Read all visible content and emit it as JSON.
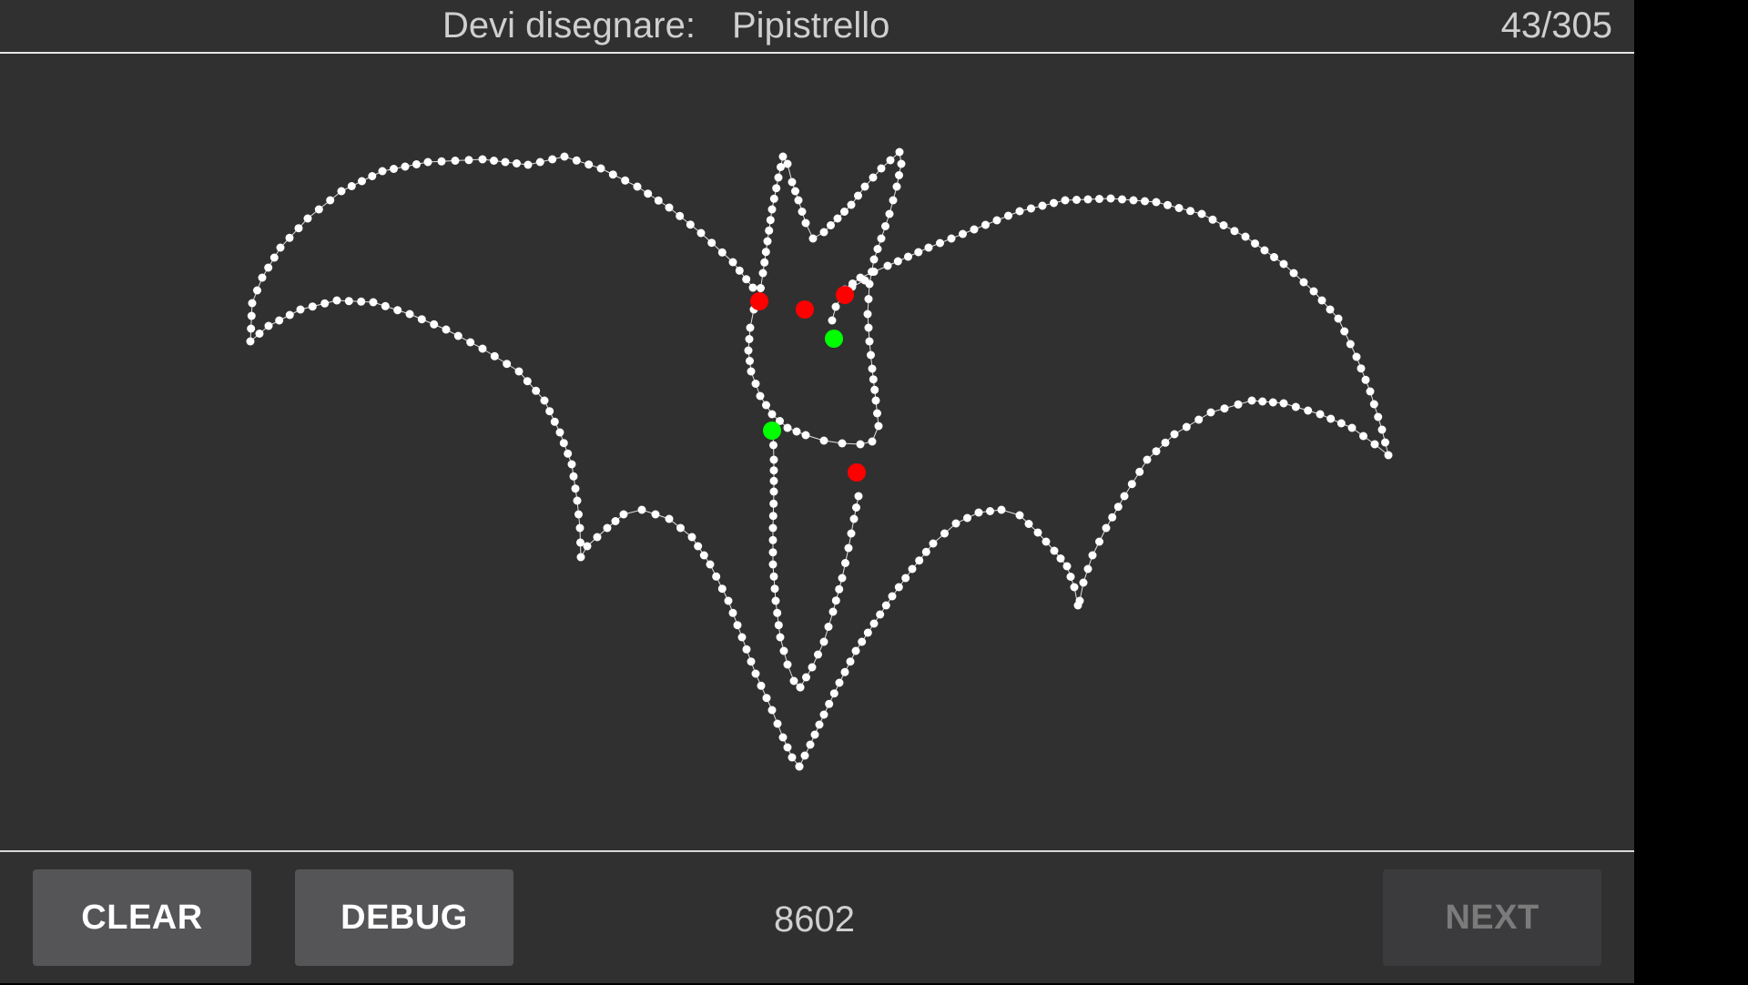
{
  "header": {
    "prompt_label": "Devi disegnare:",
    "target_word": "Pipistrello",
    "counter": "43/305"
  },
  "footer": {
    "clear_label": "CLEAR",
    "debug_label": "DEBUG",
    "score": "8602",
    "next_label": "NEXT"
  },
  "colors": {
    "background": "#303030",
    "stroke_point": "#ffffff",
    "marker_red": "#ff0000",
    "marker_green": "#00ff00"
  },
  "icons": {
    "drawing": "bat-outline-icon"
  }
}
